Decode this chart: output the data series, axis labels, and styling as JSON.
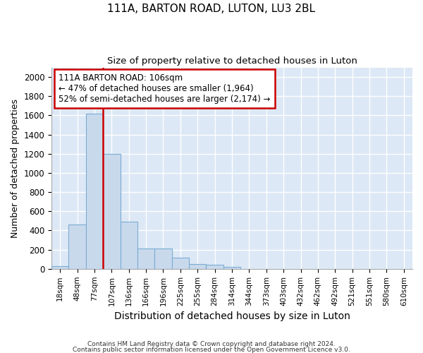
{
  "title1": "111A, BARTON ROAD, LUTON, LU3 2BL",
  "title2": "Size of property relative to detached houses in Luton",
  "xlabel": "Distribution of detached houses by size in Luton",
  "ylabel": "Number of detached properties",
  "categories": [
    "18sqm",
    "48sqm",
    "77sqm",
    "107sqm",
    "136sqm",
    "166sqm",
    "196sqm",
    "225sqm",
    "255sqm",
    "284sqm",
    "314sqm",
    "344sqm",
    "373sqm",
    "403sqm",
    "432sqm",
    "462sqm",
    "492sqm",
    "521sqm",
    "551sqm",
    "580sqm",
    "610sqm"
  ],
  "values": [
    30,
    460,
    1620,
    1200,
    490,
    210,
    210,
    120,
    50,
    40,
    20,
    0,
    0,
    0,
    0,
    0,
    0,
    0,
    0,
    0,
    0
  ],
  "bar_color": "#c9d9ec",
  "bar_edge_color": "#7aadd4",
  "vline_idx": 3,
  "annotation_line1": "111A BARTON ROAD: 106sqm",
  "annotation_line2": "← 47% of detached houses are smaller (1,964)",
  "annotation_line3": "52% of semi-detached houses are larger (2,174) →",
  "annotation_box_color": "#ffffff",
  "annotation_border_color": "#cc0000",
  "ylim": [
    0,
    2100
  ],
  "yticks": [
    0,
    200,
    400,
    600,
    800,
    1000,
    1200,
    1400,
    1600,
    1800,
    2000
  ],
  "vline_color": "#cc0000",
  "footer1": "Contains HM Land Registry data © Crown copyright and database right 2024.",
  "footer2": "Contains public sector information licensed under the Open Government Licence v3.0.",
  "fig_bg_color": "#ffffff",
  "plot_bg_color": "#dce8f5"
}
